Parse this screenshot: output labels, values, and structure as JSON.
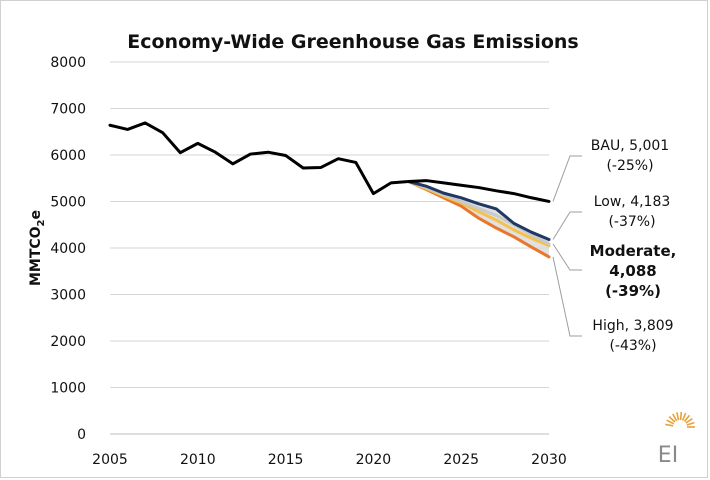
{
  "chart_data": {
    "type": "line",
    "title": "Economy-Wide Greenhouse Gas Emissions",
    "ylabel_main": "MMTCO",
    "ylabel_sub": "2",
    "ylabel_tail": "e",
    "xlim": [
      2005,
      2030
    ],
    "ylim": [
      0,
      8000
    ],
    "x_ticks": [
      2005,
      2010,
      2015,
      2020,
      2025,
      2030
    ],
    "y_ticks": [
      0,
      1000,
      2000,
      3000,
      4000,
      5000,
      6000,
      7000,
      8000
    ],
    "grid": "horizontal",
    "historical": {
      "x": [
        2005,
        2006,
        2007,
        2008,
        2009,
        2010,
        2011,
        2012,
        2013,
        2014,
        2015,
        2016,
        2017,
        2018,
        2019,
        2020,
        2021,
        2022
      ],
      "y": [
        6640,
        6550,
        6690,
        6480,
        6050,
        6250,
        6060,
        5810,
        6020,
        6060,
        5990,
        5720,
        5730,
        5920,
        5840,
        5170,
        5400,
        5430
      ],
      "color": "#000000"
    },
    "series": [
      {
        "x": [
          2022,
          2023,
          2024,
          2025,
          2026,
          2027,
          2028,
          2029,
          2030
        ],
        "y": [
          5430,
          5450,
          5400,
          5350,
          5300,
          5230,
          5170,
          5080,
          5001
        ],
        "color": "#000000"
      },
      {
        "x": [
          2022,
          2023,
          2024,
          2025,
          2026,
          2027,
          2028,
          2029,
          2030
        ],
        "y": [
          5430,
          5330,
          5180,
          5080,
          4950,
          4840,
          4530,
          4340,
          4183
        ],
        "color": "#1f3864"
      },
      {
        "x": [
          2022,
          2023,
          2024,
          2025,
          2026,
          2027,
          2028,
          2029,
          2030
        ],
        "y": [
          5430,
          5300,
          5150,
          5000,
          4850,
          4700,
          4500,
          4290,
          4088
        ],
        "color": "#c9c9c9"
      },
      {
        "x": [
          2022,
          2023,
          2024,
          2025,
          2026,
          2027,
          2028,
          2029,
          2030
        ],
        "y": [
          5430,
          5280,
          5120,
          4970,
          4780,
          4600,
          4390,
          4210,
          4050
        ],
        "color": "#f2c14e"
      },
      {
        "x": [
          2022,
          2023,
          2024,
          2025,
          2026,
          2027,
          2028,
          2029,
          2030
        ],
        "y": [
          5430,
          5260,
          5080,
          4900,
          4640,
          4430,
          4240,
          4020,
          3809
        ],
        "color": "#e8762c"
      }
    ],
    "annotations": [
      {
        "line1": "BAU,  5,001",
        "line2": "(-25%)",
        "bold": false,
        "value": 5001
      },
      {
        "line1": "Low,  4,183",
        "line2": "(-37%)",
        "bold": false,
        "value": 4183
      },
      {
        "line1": "Moderate,",
        "line2": "4,088",
        "line3": "(-39%)",
        "bold": true,
        "value": 4088
      },
      {
        "line1": "High,  3,809",
        "line2": "(-43%)",
        "bold": false,
        "value": 3809
      }
    ],
    "logo_text": "EI",
    "logo_color": "#e8a23a"
  }
}
